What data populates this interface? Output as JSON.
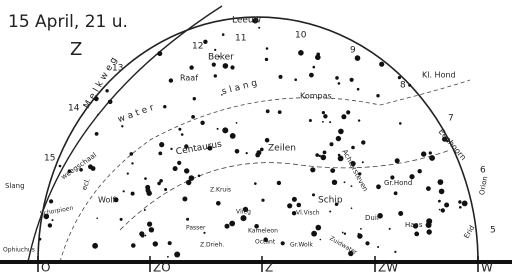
{
  "header": {
    "title": "15 April, 21 u.",
    "direction": "Z"
  },
  "compass": [
    "O",
    "ZO",
    "Z",
    "ZW",
    "W"
  ],
  "hours": [
    "10",
    "11",
    "12",
    "13",
    "14",
    "15",
    "9",
    "8",
    "7",
    "6",
    "5"
  ],
  "constellations": [
    "Leeuw",
    "Beker",
    "Raaf",
    "Kl. Hond",
    "Kompas",
    "Zeilen",
    "Eenhoorn",
    "water",
    "slang",
    "Melkweg",
    "Centaurus",
    "weegschaal",
    "ecl.",
    "Slang",
    "Schorpioen",
    "Wolf",
    "Z.Kruis",
    "Vlieg",
    "Schip",
    "Vl.Visch",
    "Achtersteven",
    "Gr.Hond",
    "Duif",
    "Haas",
    "Orion",
    "Erid",
    "Passer",
    "Z.Drieh.",
    "Kameleon",
    "Octant",
    "Gr.Wolk",
    "Zuidwater",
    "Ophiuchus"
  ]
}
